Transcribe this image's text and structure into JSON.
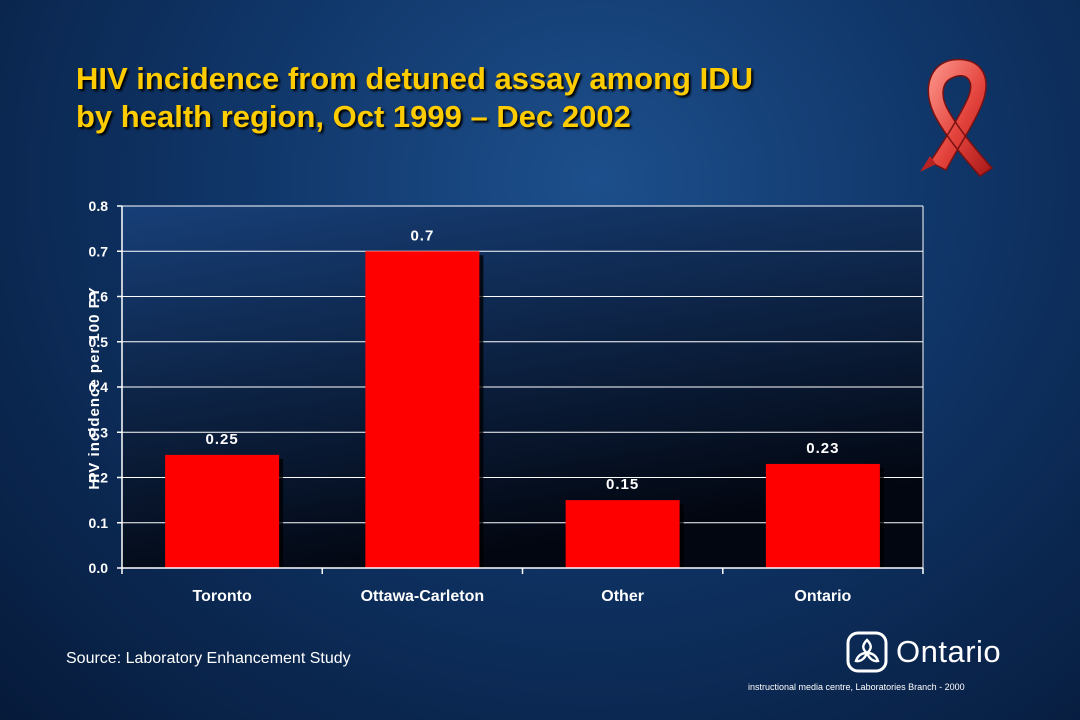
{
  "slide": {
    "title_line1": "HIV incidence from detuned assay among IDU",
    "title_line2": "by health region, Oct 1999 – Dec 2002",
    "source": "Source: Laboratory Enhancement Study",
    "logo_text": "Ontario",
    "credit": "instructional media centre, Laboratories Branch - 2000"
  },
  "colors": {
    "title": "#ffcc00",
    "bar": "#ff0000",
    "plot_background_top": "#173f78",
    "plot_background_bottom": "#020610"
  },
  "icons": [
    "red-ribbon-icon",
    "trillium-logo-icon"
  ],
  "chart_data": {
    "type": "bar",
    "categories": [
      "Toronto",
      "Ottawa-Carleton",
      "Other",
      "Ontario"
    ],
    "values": [
      0.25,
      0.7,
      0.15,
      0.23
    ],
    "value_labels": [
      "0.25",
      "0.7",
      "0.15",
      "0.23"
    ],
    "ylabel": "HIV incidence per 100 PY",
    "ylim": [
      0,
      0.8
    ],
    "yticks": [
      "0.0",
      "0.1",
      "0.2",
      "0.3",
      "0.4",
      "0.5",
      "0.6",
      "0.7",
      "0.8"
    ],
    "grid": true,
    "legend": "none"
  }
}
